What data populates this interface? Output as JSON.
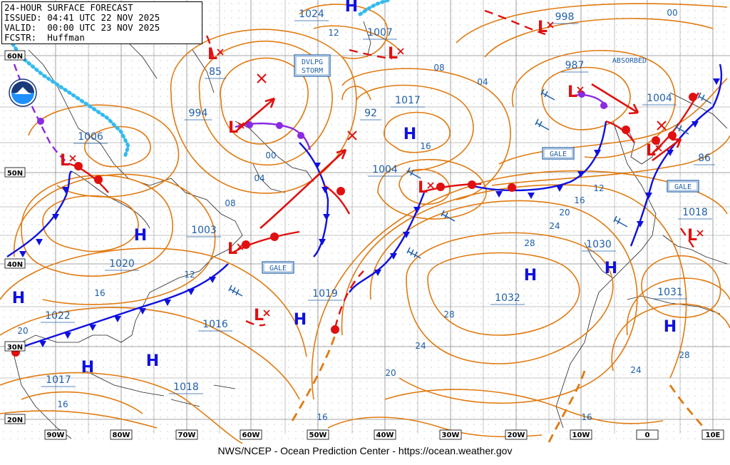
{
  "header": {
    "line1": "24-HOUR SURFACE FORECAST",
    "line2": "ISSUED: 04:41 UTC 22 NOV 2025",
    "line3": "VALID:  00:00 UTC 23 NOV 2025",
    "line4": "FCSTR:  Huffman"
  },
  "footer": "NWS/NCEP - Ocean Prediction Center - https://ocean.weather.gov",
  "logo_text": "NOAA",
  "lon_labels": [
    "90W",
    "80W",
    "70W",
    "60W",
    "50W",
    "40W",
    "30W",
    "20W",
    "10W",
    "0",
    "10E"
  ],
  "lat_labels": [
    "60N",
    "50N",
    "40N",
    "30N",
    "20N"
  ],
  "isobar_labels": [
    "1024",
    "12",
    "1007",
    "998",
    "00",
    "85",
    "994",
    "00",
    "04",
    "08",
    "92",
    "1017",
    "04",
    "08",
    "16",
    "987",
    "1004",
    "1006",
    "1004",
    "12",
    "16",
    "20",
    "86",
    "1003",
    "1020",
    "12",
    "16",
    "28",
    "24",
    "1030",
    "1018",
    "1019",
    "1032",
    "1031",
    "1022",
    "20",
    "1016",
    "28",
    "24",
    "1017",
    "16",
    "1018",
    "16",
    "20",
    "16",
    "28",
    "24"
  ],
  "text_boxes": [
    "DVLPG\nSTORM",
    "GALE",
    "GALE",
    "GALE",
    "ABSORBED"
  ],
  "highs": [
    "H",
    "H",
    "H",
    "H",
    "H",
    "H",
    "H",
    "H",
    "H",
    "H"
  ],
  "lows": [
    "L",
    "L",
    "L",
    "L",
    "L",
    "L",
    "L",
    "L",
    "L",
    "L",
    "L"
  ],
  "colors": {
    "isobar": "#e07a10",
    "cold_front": "#1010e0",
    "warm_front": "#e01010",
    "occluded": "#8a2be2",
    "high": "#1010e0",
    "low": "#e01010",
    "label": "#1f5fa8",
    "ice": "#33bbee"
  }
}
